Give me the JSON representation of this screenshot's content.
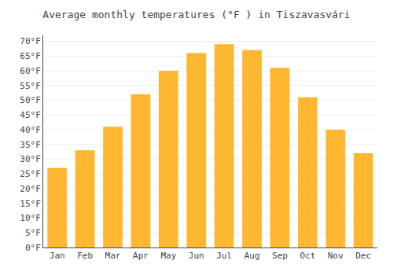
{
  "chart_data": {
    "type": "bar",
    "title": "Average monthly temperatures (°F ) in Tiszavasvári",
    "categories": [
      "Jan",
      "Feb",
      "Mar",
      "Apr",
      "May",
      "Jun",
      "Jul",
      "Aug",
      "Sep",
      "Oct",
      "Nov",
      "Dec"
    ],
    "values": [
      27,
      33,
      41,
      52,
      60,
      66,
      69,
      67,
      61,
      51,
      40,
      32
    ],
    "color": "#FFB732",
    "ylim": [
      0,
      72
    ],
    "yticks": [
      {
        "value": 0,
        "label": "0°F"
      },
      {
        "value": 5,
        "label": "5°F"
      },
      {
        "value": 10,
        "label": "10°F"
      },
      {
        "value": 15,
        "label": "15°F"
      },
      {
        "value": 20,
        "label": "20°F"
      },
      {
        "value": 25,
        "label": "25°F"
      },
      {
        "value": 30,
        "label": "30°F"
      },
      {
        "value": 35,
        "label": "35°F"
      },
      {
        "value": 40,
        "label": "40°F"
      },
      {
        "value": 45,
        "label": "45°F"
      },
      {
        "value": 50,
        "label": "50°F"
      },
      {
        "value": 55,
        "label": "55°F"
      },
      {
        "value": 60,
        "label": "60°F"
      },
      {
        "value": 65,
        "label": "65°F"
      },
      {
        "value": 70,
        "label": "70°F"
      }
    ],
    "grid": true
  }
}
